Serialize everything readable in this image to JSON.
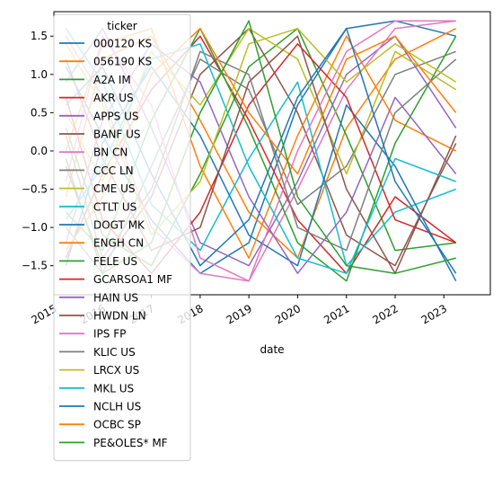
{
  "chart_data": {
    "type": "line",
    "xlabel": "date",
    "ylabel": "",
    "title": "",
    "ylim": [
      -1.88,
      1.82
    ],
    "xlim": [
      "2015-01-01",
      "2023-12-15"
    ],
    "yticks": [
      1.5,
      1.0,
      0.5,
      0.0,
      -0.5,
      -1.0,
      -1.5
    ],
    "ytick_labels": [
      "1.5",
      "1.0",
      "0.5",
      "0.0",
      "−0.5",
      "−1.0",
      "−1.5"
    ],
    "xticks": [
      "2015-01-01",
      "2016-01-01",
      "2017-01-01",
      "2018-01-01",
      "2019-01-01",
      "2020-01-01",
      "2021-01-01",
      "2022-01-01",
      "2023-01-01"
    ],
    "xtick_labels": [
      "2015",
      "2016",
      "2017",
      "2018",
      "2019",
      "2020",
      "2021",
      "2022",
      "2023"
    ],
    "grid": false,
    "legend_position": "upper-left",
    "legend_title": "ticker",
    "series": [
      {
        "name": "000120 KS",
        "color": "#1f77b4",
        "points": [
          [
            "2015-04",
            "1.1"
          ],
          [
            "2016-01",
            "0.2"
          ],
          [
            "2017-01",
            "-0.9"
          ],
          [
            "2018-01",
            "-1.6"
          ],
          [
            "2019-01",
            "-1.2"
          ],
          [
            "2020-01",
            "0.6"
          ],
          [
            "2021-01",
            "1.6"
          ],
          [
            "2022-01",
            "1.7"
          ],
          [
            "2023-04",
            "1.5"
          ]
        ]
      },
      {
        "name": "056190 KS",
        "color": "#ff7f0e",
        "points": [
          [
            "2015-04",
            "-0.6"
          ],
          [
            "2016-01",
            "1.2"
          ],
          [
            "2017-01",
            "1.5"
          ],
          [
            "2018-01",
            "0.4"
          ],
          [
            "2019-01",
            "-0.8"
          ],
          [
            "2020-01",
            "-1.4"
          ],
          [
            "2021-01",
            "0.3"
          ],
          [
            "2022-01",
            "1.2"
          ],
          [
            "2023-04",
            "1.6"
          ]
        ]
      },
      {
        "name": "A2A IM",
        "color": "#2ca02c",
        "points": [
          [
            "2015-04",
            "0.3"
          ],
          [
            "2016-01",
            "-1.1"
          ],
          [
            "2017-01",
            "-1.5"
          ],
          [
            "2018-01",
            "-0.3"
          ],
          [
            "2019-01",
            "1.1"
          ],
          [
            "2020-01",
            "1.6"
          ],
          [
            "2021-01",
            "0.2"
          ],
          [
            "2022-01",
            "-1.3"
          ],
          [
            "2023-04",
            "-1.2"
          ]
        ]
      },
      {
        "name": "AKR US",
        "color": "#d62728",
        "points": [
          [
            "2015-04",
            "-1.4"
          ],
          [
            "2016-01",
            "-0.3"
          ],
          [
            "2017-01",
            "0.8"
          ],
          [
            "2018-01",
            "1.5"
          ],
          [
            "2019-01",
            "0.4"
          ],
          [
            "2020-01",
            "-0.9"
          ],
          [
            "2021-01",
            "-1.6"
          ],
          [
            "2022-01",
            "-0.6"
          ],
          [
            "2023-04",
            "-1.2"
          ]
        ]
      },
      {
        "name": "APPS US",
        "color": "#9467bd",
        "points": [
          [
            "2015-04",
            "0.9"
          ],
          [
            "2016-01",
            "1.6"
          ],
          [
            "2017-01",
            "0.3"
          ],
          [
            "2018-01",
            "-1.2"
          ],
          [
            "2019-01",
            "-1.5"
          ],
          [
            "2020-01",
            "-0.4"
          ],
          [
            "2021-01",
            "1.0"
          ],
          [
            "2022-01",
            "1.5"
          ],
          [
            "2023-04",
            "0.3"
          ]
        ]
      },
      {
        "name": "BANF US",
        "color": "#8c564b",
        "points": [
          [
            "2015-04",
            "-0.2"
          ],
          [
            "2016-01",
            "-1.5"
          ],
          [
            "2017-01",
            "-0.6"
          ],
          [
            "2018-01",
            "1.0"
          ],
          [
            "2019-01",
            "1.6"
          ],
          [
            "2020-01",
            "0.5"
          ],
          [
            "2021-01",
            "-1.1"
          ],
          [
            "2022-01",
            "-1.5"
          ],
          [
            "2023-04",
            "0.1"
          ]
        ]
      },
      {
        "name": "BN CN",
        "color": "#e377c2",
        "points": [
          [
            "2015-04",
            "1.5"
          ],
          [
            "2016-01",
            "0.7"
          ],
          [
            "2017-01",
            "-1.0"
          ],
          [
            "2018-01",
            "-1.6"
          ],
          [
            "2019-01",
            "-1.7"
          ],
          [
            "2020-01",
            "-0.5"
          ],
          [
            "2021-01",
            "0.8"
          ],
          [
            "2022-01",
            "1.6"
          ],
          [
            "2023-04",
            "1.7"
          ]
        ]
      },
      {
        "name": "CCC LN",
        "color": "#7f7f7f",
        "points": [
          [
            "2015-04",
            "-1.0"
          ],
          [
            "2016-01",
            "-1.6"
          ],
          [
            "2017-01",
            "-0.2"
          ],
          [
            "2018-01",
            "1.2"
          ],
          [
            "2019-01",
            "0.8"
          ],
          [
            "2020-01",
            "-0.7"
          ],
          [
            "2021-01",
            "-0.2"
          ],
          [
            "2022-01",
            "1.0"
          ],
          [
            "2023-04",
            "1.3"
          ]
        ]
      },
      {
        "name": "CME US",
        "color": "#bcbd22",
        "points": [
          [
            "2015-04",
            "0.5"
          ],
          [
            "2016-01",
            "-0.4"
          ],
          [
            "2017-01",
            "1.3"
          ],
          [
            "2018-01",
            "0.6"
          ],
          [
            "2019-01",
            "1.6"
          ],
          [
            "2020-01",
            "1.2"
          ],
          [
            "2021-01",
            "-0.3"
          ],
          [
            "2022-01",
            "1.3"
          ],
          [
            "2023-04",
            "0.8"
          ]
        ]
      },
      {
        "name": "CTLT US",
        "color": "#17becf",
        "points": [
          [
            "2015-04",
            "1.6"
          ],
          [
            "2016-01",
            "0.9"
          ],
          [
            "2017-01",
            "-0.7"
          ],
          [
            "2018-01",
            "-1.3"
          ],
          [
            "2019-01",
            "-0.1"
          ],
          [
            "2020-01",
            "0.9"
          ],
          [
            "2021-01",
            "-1.5"
          ],
          [
            "2022-01",
            "-0.8"
          ],
          [
            "2023-04",
            "-0.5"
          ]
        ]
      },
      {
        "name": "DOGT MK",
        "color": "#1f77b4",
        "points": [
          [
            "2015-04",
            "-1.5"
          ],
          [
            "2016-01",
            "0.1"
          ],
          [
            "2017-01",
            "1.1"
          ],
          [
            "2018-01",
            "0.2"
          ],
          [
            "2019-01",
            "-1.1"
          ],
          [
            "2020-01",
            "-1.5"
          ],
          [
            "2021-01",
            "0.6"
          ],
          [
            "2022-01",
            "-0.2"
          ],
          [
            "2023-04",
            "-1.7"
          ]
        ]
      },
      {
        "name": "ENGH CN",
        "color": "#ff7f0e",
        "points": [
          [
            "2015-04",
            "0.0"
          ],
          [
            "2016-01",
            "1.4"
          ],
          [
            "2017-01",
            "1.6"
          ],
          [
            "2018-01",
            "-0.2"
          ],
          [
            "2019-01",
            "-1.4"
          ],
          [
            "2020-01",
            "0.2"
          ],
          [
            "2021-01",
            "1.5"
          ],
          [
            "2022-01",
            "0.4"
          ],
          [
            "2023-04",
            "0.0"
          ]
        ]
      },
      {
        "name": "FELE US",
        "color": "#2ca02c",
        "points": [
          [
            "2015-04",
            "-0.8"
          ],
          [
            "2016-01",
            "-1.3"
          ],
          [
            "2017-01",
            "0.4"
          ],
          [
            "2018-01",
            "1.6"
          ],
          [
            "2019-01",
            "0.3"
          ],
          [
            "2020-01",
            "-1.2"
          ],
          [
            "2021-01",
            "-1.7"
          ],
          [
            "2022-01",
            "0.1"
          ],
          [
            "2023-04",
            "1.5"
          ]
        ]
      },
      {
        "name": "GCARSOA1 MF",
        "color": "#d62728",
        "points": [
          [
            "2015-04",
            "0.7"
          ],
          [
            "2016-01",
            "-0.9"
          ],
          [
            "2017-01",
            "-1.6"
          ],
          [
            "2018-01",
            "-0.8"
          ],
          [
            "2019-01",
            "0.6"
          ],
          [
            "2020-01",
            "1.4"
          ],
          [
            "2021-01",
            "0.7"
          ],
          [
            "2022-01",
            "-0.9"
          ],
          [
            "2023-04",
            "-1.2"
          ]
        ]
      },
      {
        "name": "HAIN US",
        "color": "#9467bd",
        "points": [
          [
            "2015-04",
            "-1.2"
          ],
          [
            "2016-01",
            "0.4"
          ],
          [
            "2017-01",
            "1.4"
          ],
          [
            "2018-01",
            "0.9"
          ],
          [
            "2019-01",
            "-0.6"
          ],
          [
            "2020-01",
            "-1.6"
          ],
          [
            "2021-01",
            "-0.8"
          ],
          [
            "2022-01",
            "0.7"
          ],
          [
            "2023-04",
            "-0.3"
          ]
        ]
      },
      {
        "name": "HWDN LN",
        "color": "#8c564b",
        "points": [
          [
            "2015-04",
            "1.2"
          ],
          [
            "2016-01",
            "-0.1"
          ],
          [
            "2017-01",
            "-1.3"
          ],
          [
            "2018-01",
            "-1.0"
          ],
          [
            "2019-01",
            "0.9"
          ],
          [
            "2020-01",
            "1.5"
          ],
          [
            "2021-01",
            "-0.5"
          ],
          [
            "2022-01",
            "-1.6"
          ],
          [
            "2023-04",
            "0.2"
          ]
        ]
      },
      {
        "name": "IPS FP",
        "color": "#e377c2",
        "points": [
          [
            "2015-04",
            "-0.4"
          ],
          [
            "2016-01",
            "1.5"
          ],
          [
            "2017-01",
            "0.6"
          ],
          [
            "2018-01",
            "-1.4"
          ],
          [
            "2019-01",
            "-1.7"
          ],
          [
            "2020-01",
            "0.0"
          ],
          [
            "2021-01",
            "1.3"
          ],
          [
            "2022-01",
            "1.7"
          ],
          [
            "2023-04",
            "1.7"
          ]
        ]
      },
      {
        "name": "KLIC US",
        "color": "#7f7f7f",
        "points": [
          [
            "2015-04",
            "0.2"
          ],
          [
            "2016-01",
            "-1.4"
          ],
          [
            "2017-01",
            "-0.5"
          ],
          [
            "2018-01",
            "1.3"
          ],
          [
            "2019-01",
            "1.0"
          ],
          [
            "2020-01",
            "-1.0"
          ],
          [
            "2021-01",
            "-1.3"
          ],
          [
            "2022-01",
            "0.5"
          ],
          [
            "2023-04",
            "1.2"
          ]
        ]
      },
      {
        "name": "LRCX US",
        "color": "#bcbd22",
        "points": [
          [
            "2015-04",
            "1.4"
          ],
          [
            "2016-01",
            "0.6"
          ],
          [
            "2017-01",
            "-1.1"
          ],
          [
            "2018-01",
            "-0.4"
          ],
          [
            "2019-01",
            "1.4"
          ],
          [
            "2020-01",
            "1.6"
          ],
          [
            "2021-01",
            "0.9"
          ],
          [
            "2022-01",
            "1.4"
          ],
          [
            "2023-04",
            "0.9"
          ]
        ]
      },
      {
        "name": "MKL US",
        "color": "#17becf",
        "points": [
          [
            "2015-04",
            "-0.9"
          ],
          [
            "2016-01",
            "-0.2"
          ],
          [
            "2017-01",
            "1.2"
          ],
          [
            "2018-01",
            "1.4"
          ],
          [
            "2019-01",
            "-0.2"
          ],
          [
            "2020-01",
            "-1.4"
          ],
          [
            "2021-01",
            "-1.6"
          ],
          [
            "2022-01",
            "-0.1"
          ],
          [
            "2023-04",
            "-0.4"
          ]
        ]
      },
      {
        "name": "NCLH US",
        "color": "#1f77b4",
        "points": [
          [
            "2015-04",
            "0.6"
          ],
          [
            "2016-01",
            "1.1"
          ],
          [
            "2017-01",
            "-0.3"
          ],
          [
            "2018-01",
            "-1.5"
          ],
          [
            "2019-01",
            "-0.9"
          ],
          [
            "2020-01",
            "0.7"
          ],
          [
            "2021-01",
            "1.6"
          ],
          [
            "2022-01",
            "-0.4"
          ],
          [
            "2023-04",
            "-1.6"
          ]
        ]
      },
      {
        "name": "OCBC SP",
        "color": "#ff7f0e",
        "points": [
          [
            "2015-04",
            "-1.3"
          ],
          [
            "2016-01",
            "-0.6"
          ],
          [
            "2017-01",
            "1.0"
          ],
          [
            "2018-01",
            "1.6"
          ],
          [
            "2019-01",
            "0.5"
          ],
          [
            "2020-01",
            "-0.3"
          ],
          [
            "2021-01",
            "1.2"
          ],
          [
            "2022-01",
            "1.5"
          ],
          [
            "2023-04",
            "0.5"
          ]
        ]
      },
      {
        "name": "PE&OLES* MF",
        "color": "#2ca02c",
        "points": [
          [
            "2015-04",
            "-0.1"
          ],
          [
            "2016-01",
            "-1.6"
          ],
          [
            "2017-01",
            "-1.2"
          ],
          [
            "2018-01",
            "0.5"
          ],
          [
            "2019-01",
            "1.7"
          ],
          [
            "2020-01",
            "-0.6"
          ],
          [
            "2021-01",
            "-1.5"
          ],
          [
            "2022-01",
            "-1.6"
          ],
          [
            "2023-04",
            "-1.4"
          ]
        ]
      }
    ]
  }
}
